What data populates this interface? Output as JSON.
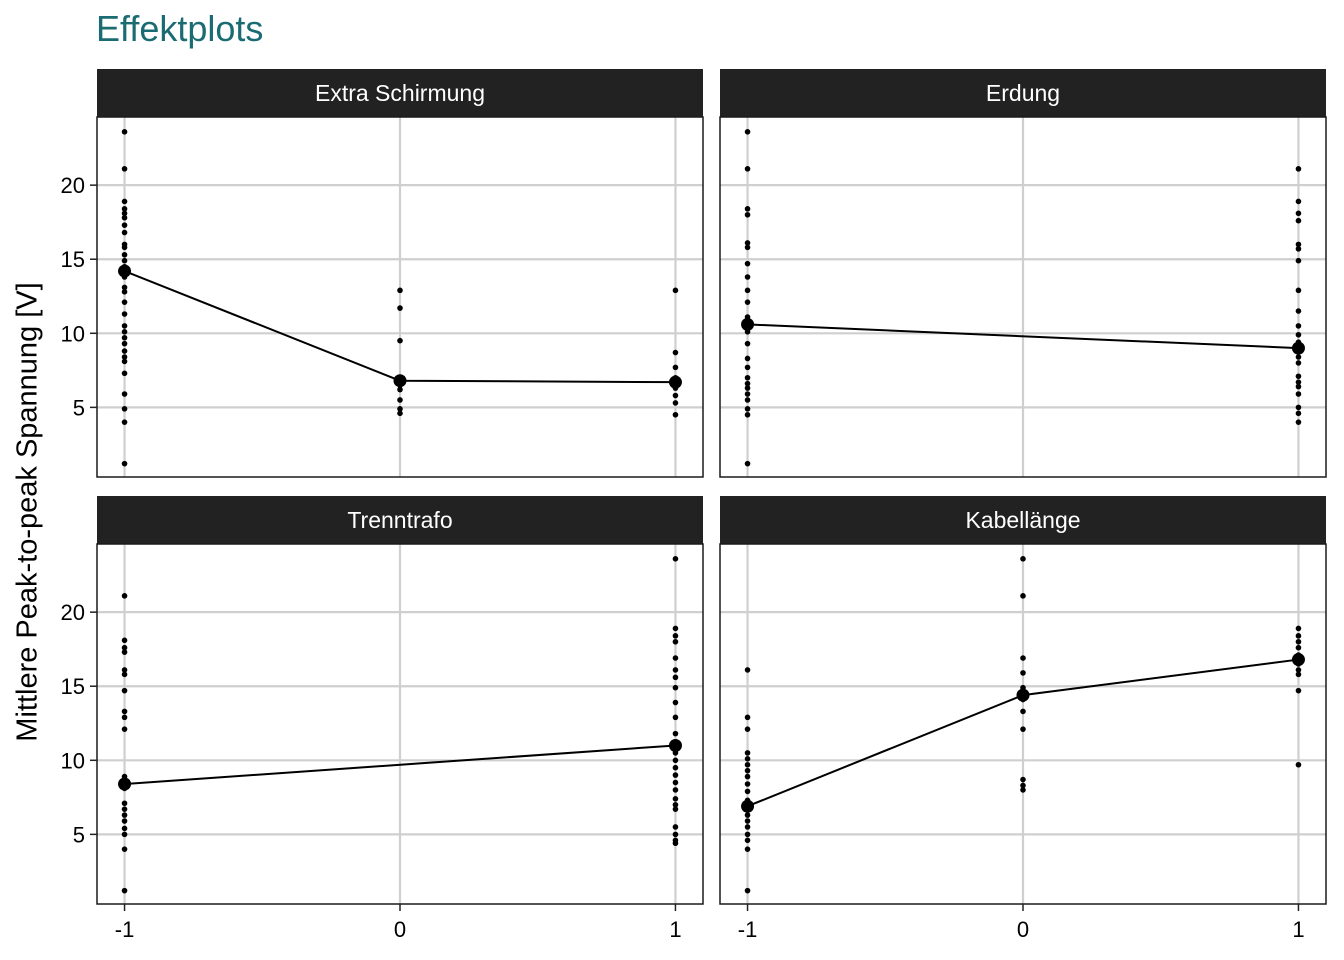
{
  "title": "Effektplots",
  "chart_data": {
    "type": "scatter",
    "title": "Effektplots",
    "ylabel": "Mittlere Peak-to-peak Spannung [V]",
    "xlabel": "",
    "x_ticks": [
      -1,
      0,
      1
    ],
    "x_tick_labels": [
      "-1",
      "0",
      "1"
    ],
    "y_ticks": [
      5,
      10,
      15,
      20
    ],
    "y_tick_labels": [
      "5",
      "10",
      "15",
      "20"
    ],
    "xlim": [
      -1.1,
      1.1
    ],
    "ylim": [
      0.3,
      24.6
    ],
    "grid": true,
    "panels": [
      {
        "label": "Extra Schirmung",
        "means": [
          {
            "x": -1,
            "y": 14.2
          },
          {
            "x": 0,
            "y": 6.8
          },
          {
            "x": 1,
            "y": 6.7
          }
        ],
        "points": [
          {
            "x": -1,
            "ys": [
              23.6,
              21.1,
              18.9,
              18.4,
              18.1,
              17.8,
              17.3,
              16.8,
              16.0,
              15.8,
              15.3,
              14.9,
              14.5,
              14.2,
              13.8,
              13.1,
              12.8,
              12.1,
              11.3,
              10.5,
              10.1,
              9.7,
              9.3,
              8.8,
              8.4,
              8.1,
              7.3,
              5.9,
              4.9,
              4.0,
              1.2
            ]
          },
          {
            "x": 0,
            "ys": [
              12.9,
              11.7,
              9.5,
              7.0,
              6.5,
              6.2,
              5.5,
              4.9,
              4.6
            ]
          },
          {
            "x": 1,
            "ys": [
              12.9,
              8.7,
              7.7,
              7.0,
              6.3,
              5.8,
              5.3,
              4.5
            ]
          }
        ]
      },
      {
        "label": "Erdung",
        "means": [
          {
            "x": -1,
            "y": 10.6
          },
          {
            "x": 1,
            "y": 9.0
          }
        ],
        "points": [
          {
            "x": -1,
            "ys": [
              23.6,
              21.1,
              18.4,
              18.0,
              16.1,
              15.8,
              14.7,
              13.8,
              12.9,
              12.1,
              11.1,
              10.8,
              10.5,
              10.1,
              9.3,
              8.3,
              7.7,
              7.0,
              6.6,
              6.3,
              5.9,
              5.5,
              4.9,
              4.5,
              1.2
            ]
          },
          {
            "x": 1,
            "ys": [
              21.1,
              18.9,
              18.1,
              17.6,
              16.0,
              15.7,
              14.9,
              12.9,
              11.5,
              10.5,
              9.9,
              9.4,
              9.0,
              8.4,
              8.0,
              7.1,
              6.7,
              6.4,
              5.9,
              5.0,
              4.6,
              4.0
            ]
          }
        ]
      },
      {
        "label": "Trenntrafo",
        "means": [
          {
            "x": -1,
            "y": 8.4
          },
          {
            "x": 1,
            "y": 11.0
          }
        ],
        "points": [
          {
            "x": -1,
            "ys": [
              21.1,
              18.1,
              17.6,
              17.3,
              16.1,
              15.8,
              14.7,
              13.3,
              12.9,
              12.1,
              8.9,
              8.5,
              8.1,
              7.1,
              6.7,
              6.3,
              5.9,
              5.4,
              5.0,
              4.0,
              1.2
            ]
          },
          {
            "x": 1,
            "ys": [
              23.6,
              18.9,
              18.4,
              18.0,
              16.9,
              16.1,
              15.6,
              14.9,
              13.9,
              12.9,
              11.8,
              11.2,
              10.5,
              10.0,
              9.5,
              9.0,
              8.5,
              8.0,
              7.4,
              7.0,
              6.7,
              5.5,
              5.0,
              4.6,
              4.4
            ]
          }
        ]
      },
      {
        "label": "Kabellänge",
        "means": [
          {
            "x": -1,
            "y": 6.9
          },
          {
            "x": 0,
            "y": 14.4
          },
          {
            "x": 1,
            "y": 16.8
          }
        ],
        "points": [
          {
            "x": -1,
            "ys": [
              16.1,
              12.9,
              12.1,
              10.5,
              10.1,
              9.7,
              9.3,
              8.9,
              8.4,
              7.9,
              7.3,
              6.7,
              6.3,
              5.9,
              5.5,
              5.0,
              4.6,
              4.0,
              1.2
            ]
          },
          {
            "x": 0,
            "ys": [
              23.6,
              21.1,
              16.9,
              15.9,
              14.9,
              14.1,
              13.3,
              12.1,
              8.7,
              8.3,
              8.0
            ]
          },
          {
            "x": 1,
            "ys": [
              18.9,
              18.4,
              18.0,
              17.6,
              17.1,
              16.5,
              16.1,
              15.8,
              14.7,
              9.7
            ]
          }
        ]
      }
    ]
  }
}
